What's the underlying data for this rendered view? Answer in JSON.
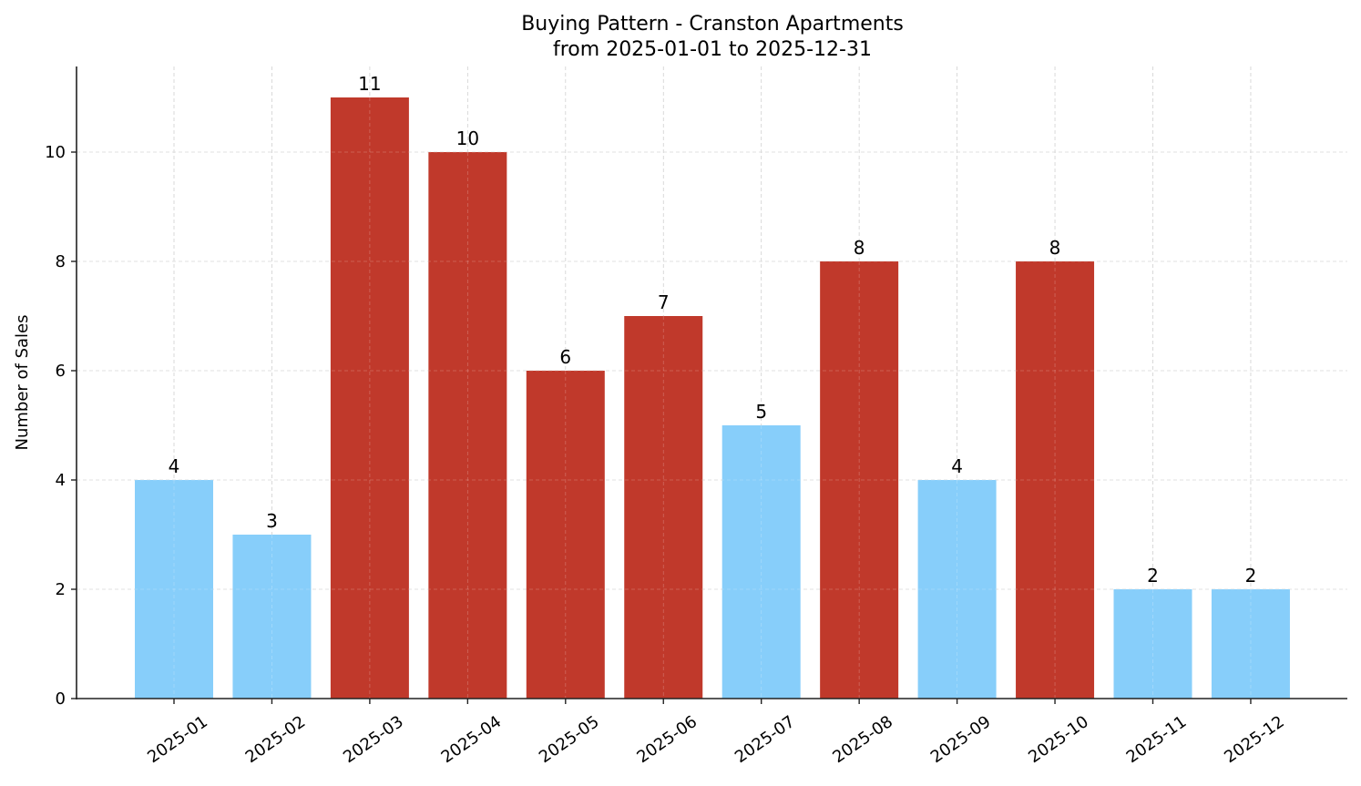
{
  "chart_data": {
    "type": "bar",
    "title": "Buying Pattern - Cranston Apartments",
    "subtitle": "from 2025-01-01 to 2025-12-31",
    "xlabel": "",
    "ylabel": "Number of Sales",
    "categories": [
      "2025-01",
      "2025-02",
      "2025-03",
      "2025-04",
      "2025-05",
      "2025-06",
      "2025-07",
      "2025-08",
      "2025-09",
      "2025-10",
      "2025-11",
      "2025-12"
    ],
    "values": [
      4,
      3,
      11,
      10,
      6,
      7,
      5,
      8,
      4,
      8,
      2,
      2
    ],
    "bar_colors": [
      "#87CEFA",
      "#87CEFA",
      "#C0392B",
      "#C0392B",
      "#C0392B",
      "#C0392B",
      "#87CEFA",
      "#C0392B",
      "#87CEFA",
      "#C0392B",
      "#87CEFA",
      "#87CEFA"
    ],
    "ylim": [
      0,
      11.55
    ],
    "yticks": [
      0,
      2,
      4,
      6,
      8,
      10
    ],
    "grid": true,
    "legend": null,
    "data_labels": true
  },
  "colors": {
    "low": "#87CEFA",
    "high": "#C0392B",
    "grid": "#d0d0d0",
    "axis": "#222222"
  }
}
